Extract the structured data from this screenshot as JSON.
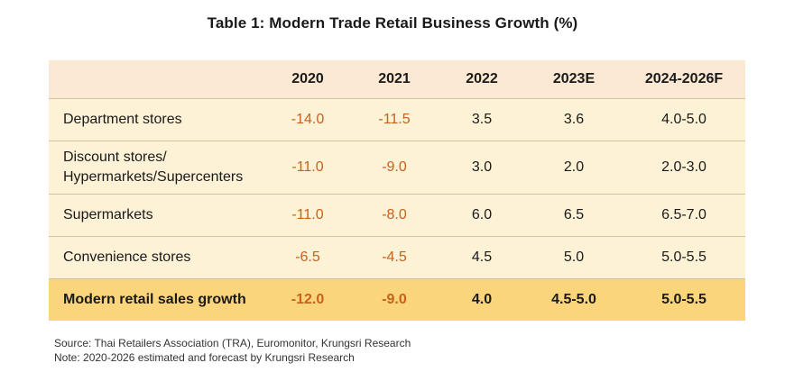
{
  "title": "Table 1: Modern Trade Retail Business Growth (%)",
  "table": {
    "columns": [
      "",
      "2020",
      "2021",
      "2022",
      "2023E",
      "2024-2026F"
    ],
    "rows": [
      {
        "label": "Department stores",
        "values": [
          "-14.0",
          "-11.5",
          "3.5",
          "3.6",
          "4.0-5.0"
        ]
      },
      {
        "label": "Discount stores/\nHypermarkets/Supercenters",
        "values": [
          "-11.0",
          "-9.0",
          "3.0",
          "2.0",
          "2.0-3.0"
        ]
      },
      {
        "label": "Supermarkets",
        "values": [
          "-11.0",
          "-8.0",
          "6.0",
          "6.5",
          "6.5-7.0"
        ]
      },
      {
        "label": "Convenience stores",
        "values": [
          "-6.5",
          "-4.5",
          "4.5",
          "5.0",
          "5.0-5.5"
        ]
      }
    ],
    "total": {
      "label": "Modern retail sales growth",
      "values": [
        "-12.0",
        "-9.0",
        "4.0",
        "4.5-5.0",
        "5.0-5.5"
      ]
    }
  },
  "notes": {
    "source": "Source: Thai Retailers Association (TRA), Euromonitor, Krungsri Research",
    "note": "Note: 2020-2026 estimated and forecast by Krungsri Research"
  },
  "colors": {
    "header_bg": "#fbe9d3",
    "row_bg": "#fdf1d6",
    "total_bg": "#fad57b",
    "negative_text": "#c9601c"
  }
}
